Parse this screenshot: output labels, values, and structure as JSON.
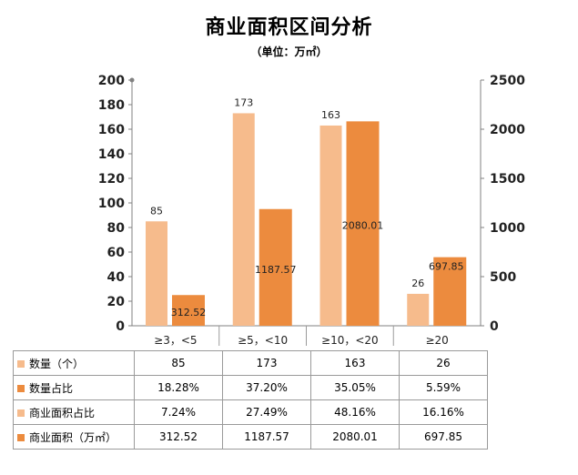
{
  "title": "商业面积区间分析",
  "subtitle": "（单位：万㎡）",
  "chart_data": {
    "type": "bar",
    "categories": [
      "≥3，<5",
      "≥5，<10",
      "≥10，<20",
      "≥20"
    ],
    "series": [
      {
        "name": "数量（个）",
        "axis": "left",
        "color": "#f6bb8c",
        "values": [
          85,
          173,
          163,
          26
        ],
        "labels": [
          "85",
          "173",
          "163",
          "26"
        ]
      },
      {
        "name": "商业面积（万㎡）",
        "axis": "right",
        "color": "#ec8b3e",
        "values": [
          312.52,
          1187.57,
          2080.01,
          697.85
        ],
        "labels": [
          "312.52",
          "1187.57",
          "2080.01",
          "697.85"
        ]
      },
      {
        "name": "数量占比",
        "axis": "left",
        "values": [
          0.1828,
          0.372,
          0.3505,
          0.0559
        ]
      },
      {
        "name": "商业面积占比",
        "axis": "left",
        "values": [
          0.0724,
          0.2749,
          0.4816,
          0.1616
        ]
      }
    ],
    "ylim_left": [
      0,
      200
    ],
    "yticks_left": [
      "0",
      "20",
      "40",
      "60",
      "80",
      "100",
      "120",
      "140",
      "160",
      "180",
      "200"
    ],
    "ylim_right": [
      0,
      2500
    ],
    "yticks_right": [
      "0",
      "500",
      "1000",
      "1500",
      "2000",
      "2500"
    ],
    "grid": false
  },
  "table": {
    "rows": [
      {
        "label": "数量（个）",
        "color": "#f6bb8c",
        "cells": [
          "85",
          "173",
          "163",
          "26"
        ]
      },
      {
        "label": "数量占比",
        "color": "#ec8b3e",
        "cells": [
          "18.28%",
          "37.20%",
          "35.05%",
          "5.59%"
        ]
      },
      {
        "label": "商业面积占比",
        "color": "#f6bb8c",
        "cells": [
          "7.24%",
          "27.49%",
          "48.16%",
          "16.16%"
        ]
      },
      {
        "label": "商业面积（万㎡）",
        "color": "#ec8b3e",
        "cells": [
          "312.52",
          "1187.57",
          "2080.01",
          "697.85"
        ]
      }
    ]
  }
}
